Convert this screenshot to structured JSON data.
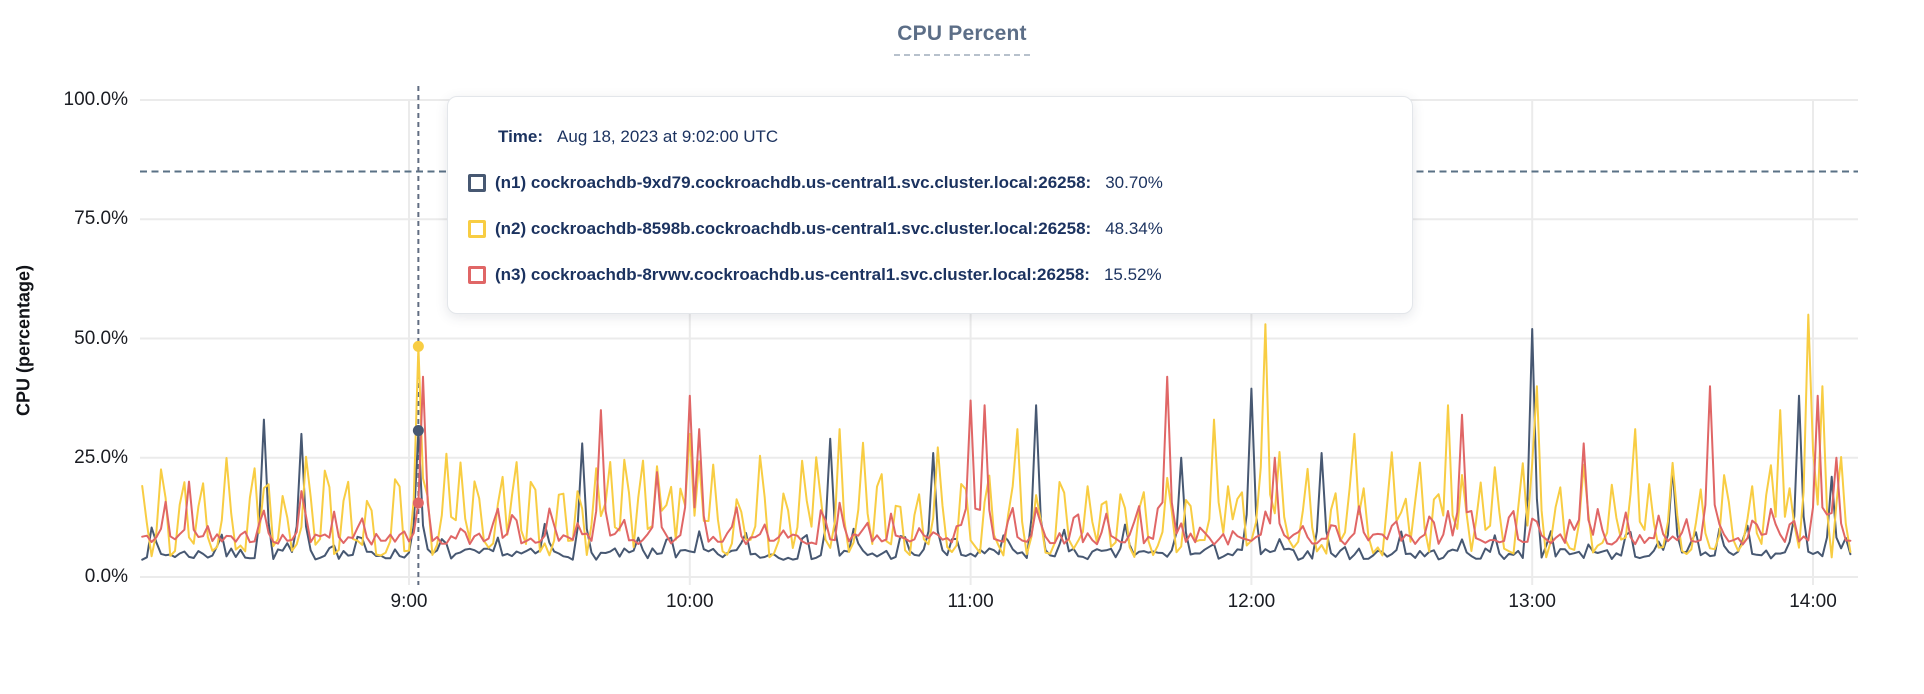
{
  "header": {
    "title": "CPU Percent"
  },
  "tooltip": {
    "time_label": "Time:",
    "time_value": "Aug 18, 2023 at 9:02:00 UTC",
    "rows": [
      {
        "label": "(n1) cockroachdb-9xd79.cockroachdb.us-central1.svc.cluster.local:26258:",
        "value": "30.70%"
      },
      {
        "label": "(n2) cockroachdb-8598b.cockroachdb.us-central1.svc.cluster.local:26258:",
        "value": "48.34%"
      },
      {
        "label": "(n3) cockroachdb-8rvwv.cockroachdb.us-central1.svc.cluster.local:26258:",
        "value": "15.52%"
      }
    ]
  },
  "colors": {
    "grid": "#ebebeb",
    "threshold_line": "#5a7186",
    "cursor_line": "#616d82",
    "title": "#5c6e87",
    "tick_text": "#1a1c22",
    "tooltip_text": "#1b325f"
  },
  "chart_data": {
    "type": "line",
    "title": "CPU Percent",
    "xlabel": "",
    "ylabel": "CPU (percentage)",
    "ylim": [
      0,
      100
    ],
    "grid": true,
    "legend_position": "tooltip-overlay",
    "yticks": [
      {
        "label": "100.0%",
        "value": 100
      },
      {
        "label": "75.0%",
        "value": 75
      },
      {
        "label": "50.0%",
        "value": 50
      },
      {
        "label": "25.0%",
        "value": 25
      },
      {
        "label": "0.0%",
        "value": 0
      }
    ],
    "xticks": [
      {
        "label": "9:00",
        "minutes": 60
      },
      {
        "label": "10:00",
        "minutes": 120
      },
      {
        "label": "11:00",
        "minutes": 180
      },
      {
        "label": "12:00",
        "minutes": 240
      },
      {
        "label": "13:00",
        "minutes": 300
      },
      {
        "label": "14:00",
        "minutes": 360
      }
    ],
    "x_window": {
      "start_label": "8:03",
      "end_label": "14:08",
      "start_minutes_from_8am": 3,
      "end_minutes_from_8am": 368,
      "sample_step_minutes": 1
    },
    "threshold_line": {
      "value": 85,
      "style": "dashed"
    },
    "hover": {
      "time": "9:02",
      "minutes": 62,
      "values": [
        {
          "series": "n1",
          "pct": 30.7
        },
        {
          "series": "n2",
          "pct": 48.34
        },
        {
          "series": "n3",
          "pct": 15.52
        }
      ]
    },
    "series": [
      {
        "id": "n1",
        "name": "(n1) cockroachdb-9xd79.cockroachdb.us-central1.svc.cluster.local:26258",
        "color": "#475872",
        "hover_value": 30.7,
        "baseline": 4.8,
        "noise": 1.2,
        "seed": 7,
        "minor": {
          "interval": 10,
          "h_min": 3,
          "h_max": 9,
          "width": 1.3
        },
        "major_spikes": [
          [
            29,
            33
          ],
          [
            37,
            30
          ],
          [
            62,
            30.7
          ],
          [
            97,
            28
          ],
          [
            150,
            29
          ],
          [
            172,
            26
          ],
          [
            194,
            36
          ],
          [
            225,
            25
          ],
          [
            240,
            39.5
          ],
          [
            255,
            26
          ],
          [
            300,
            52
          ],
          [
            330,
            23
          ],
          [
            357,
            38
          ],
          [
            364,
            21
          ]
        ]
      },
      {
        "id": "n2",
        "name": "(n2) cockroachdb-8598b.cockroachdb.us-central1.svc.cluster.local:26258",
        "color": "#f8cd43",
        "hover_value": 48.34,
        "baseline": 6.0,
        "noise": 1.9,
        "seed": 13,
        "minor": {
          "interval": 4.3,
          "h_min": 14,
          "h_max": 24,
          "width": 1.6
        },
        "major_spikes": [
          [
            62,
            48.34
          ],
          [
            120,
            30
          ],
          [
            152,
            31
          ],
          [
            190,
            31
          ],
          [
            232,
            33
          ],
          [
            243,
            53
          ],
          [
            262,
            30
          ],
          [
            282,
            36
          ],
          [
            301,
            40
          ],
          [
            322,
            31
          ],
          [
            353,
            35
          ],
          [
            359,
            55
          ],
          [
            362,
            40
          ]
        ]
      },
      {
        "id": "n3",
        "name": "(n3) cockroachdb-8rvwv.cockroachdb.us-central1.svc.cluster.local:26258",
        "color": "#e06666",
        "hover_value": 15.52,
        "baseline": 8.0,
        "noise": 1.2,
        "seed": 5,
        "minor": {
          "interval": 6.3,
          "h_min": 4,
          "h_max": 11,
          "width": 1.35
        },
        "major_spikes": [
          [
            13,
            20
          ],
          [
            37,
            18
          ],
          [
            63,
            42
          ],
          [
            101,
            35
          ],
          [
            113,
            22
          ],
          [
            120,
            38
          ],
          [
            122,
            31
          ],
          [
            180,
            37
          ],
          [
            183,
            36
          ],
          [
            222,
            42
          ],
          [
            245,
            25
          ],
          [
            285,
            34
          ],
          [
            311,
            28
          ],
          [
            338,
            40
          ],
          [
            361,
            38
          ],
          [
            365,
            25
          ]
        ]
      }
    ]
  }
}
